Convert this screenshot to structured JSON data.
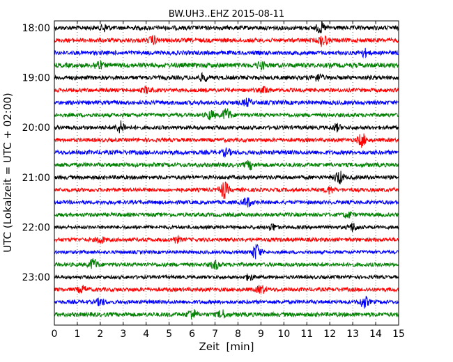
{
  "chart_data": {
    "type": "line",
    "title": "BW.UH3..EHZ 2015-08-11",
    "xlabel": "Zeit  [min]",
    "ylabel": "UTC (Lokalzeit = UTC + 02:00)",
    "xlim": [
      0,
      15
    ],
    "x_ticks": [
      "0",
      "1",
      "2",
      "3",
      "4",
      "5",
      "6",
      "7",
      "8",
      "9",
      "10",
      "11",
      "12",
      "13",
      "14",
      "15"
    ],
    "y_ticks": [
      "18:00",
      "19:00",
      "20:00",
      "21:00",
      "22:00",
      "23:00"
    ],
    "grid": "vertical dotted",
    "colors": [
      "#000000",
      "#ff0000",
      "#0000ff",
      "#008000"
    ],
    "traces": [
      {
        "start": "18:00",
        "color": "#000000",
        "amp": 0.55,
        "events": [
          [
            2.2,
            0.8
          ],
          [
            11.6,
            1.2
          ]
        ]
      },
      {
        "start": "18:15",
        "color": "#ff0000",
        "amp": 0.55,
        "events": [
          [
            4.3,
            0.9
          ],
          [
            11.7,
            1.4
          ]
        ]
      },
      {
        "start": "18:30",
        "color": "#0000ff",
        "amp": 0.55,
        "events": [
          [
            13.5,
            0.8
          ]
        ]
      },
      {
        "start": "18:45",
        "color": "#008000",
        "amp": 0.6,
        "events": [
          [
            1.9,
            1.0
          ],
          [
            9.0,
            0.8
          ]
        ]
      },
      {
        "start": "19:00",
        "color": "#000000",
        "amp": 0.55,
        "events": [
          [
            6.5,
            0.8
          ],
          [
            11.5,
            0.8
          ]
        ]
      },
      {
        "start": "19:15",
        "color": "#ff0000",
        "amp": 0.5,
        "events": [
          [
            4.0,
            0.7
          ],
          [
            9.2,
            0.7
          ]
        ]
      },
      {
        "start": "19:30",
        "color": "#0000ff",
        "amp": 0.55,
        "events": [
          [
            8.4,
            0.8
          ]
        ]
      },
      {
        "start": "19:45",
        "color": "#008000",
        "amp": 0.5,
        "events": [
          [
            6.8,
            1.0
          ],
          [
            7.5,
            1.6
          ]
        ]
      },
      {
        "start": "20:00",
        "color": "#000000",
        "amp": 0.5,
        "events": [
          [
            2.9,
            1.4
          ],
          [
            12.3,
            0.8
          ]
        ]
      },
      {
        "start": "20:15",
        "color": "#ff0000",
        "amp": 0.5,
        "events": [
          [
            13.4,
            1.6
          ]
        ]
      },
      {
        "start": "20:30",
        "color": "#0000ff",
        "amp": 0.55,
        "events": [
          [
            7.5,
            0.8
          ]
        ]
      },
      {
        "start": "20:45",
        "color": "#008000",
        "amp": 0.55,
        "events": [
          [
            8.5,
            0.9
          ]
        ]
      },
      {
        "start": "21:00",
        "color": "#000000",
        "amp": 0.5,
        "events": [
          [
            12.4,
            1.6
          ]
        ]
      },
      {
        "start": "21:15",
        "color": "#ff0000",
        "amp": 0.5,
        "events": [
          [
            7.4,
            2.0
          ],
          [
            12.0,
            0.8
          ]
        ]
      },
      {
        "start": "21:30",
        "color": "#0000ff",
        "amp": 0.5,
        "events": [
          [
            8.4,
            1.1
          ]
        ]
      },
      {
        "start": "21:45",
        "color": "#008000",
        "amp": 0.5,
        "events": [
          [
            12.8,
            0.7
          ]
        ]
      },
      {
        "start": "22:00",
        "color": "#000000",
        "amp": 0.45,
        "events": [
          [
            9.5,
            0.8
          ],
          [
            13.0,
            1.0
          ]
        ]
      },
      {
        "start": "22:15",
        "color": "#ff0000",
        "amp": 0.5,
        "events": [
          [
            2.0,
            0.8
          ],
          [
            5.3,
            0.7
          ]
        ]
      },
      {
        "start": "22:30",
        "color": "#0000ff",
        "amp": 0.45,
        "events": [
          [
            8.8,
            2.0
          ]
        ]
      },
      {
        "start": "22:45",
        "color": "#008000",
        "amp": 0.5,
        "events": [
          [
            1.7,
            1.4
          ],
          [
            7.0,
            1.0
          ]
        ]
      },
      {
        "start": "23:00",
        "color": "#000000",
        "amp": 0.45,
        "events": [
          [
            8.5,
            0.7
          ]
        ]
      },
      {
        "start": "23:15",
        "color": "#ff0000",
        "amp": 0.5,
        "events": [
          [
            1.2,
            0.8
          ],
          [
            9.0,
            1.0
          ]
        ]
      },
      {
        "start": "23:30",
        "color": "#0000ff",
        "amp": 0.5,
        "events": [
          [
            2.0,
            0.8
          ],
          [
            13.5,
            1.4
          ]
        ]
      },
      {
        "start": "23:45",
        "color": "#008000",
        "amp": 0.55,
        "events": [
          [
            6.0,
            1.2
          ],
          [
            7.3,
            0.9
          ]
        ]
      }
    ]
  }
}
